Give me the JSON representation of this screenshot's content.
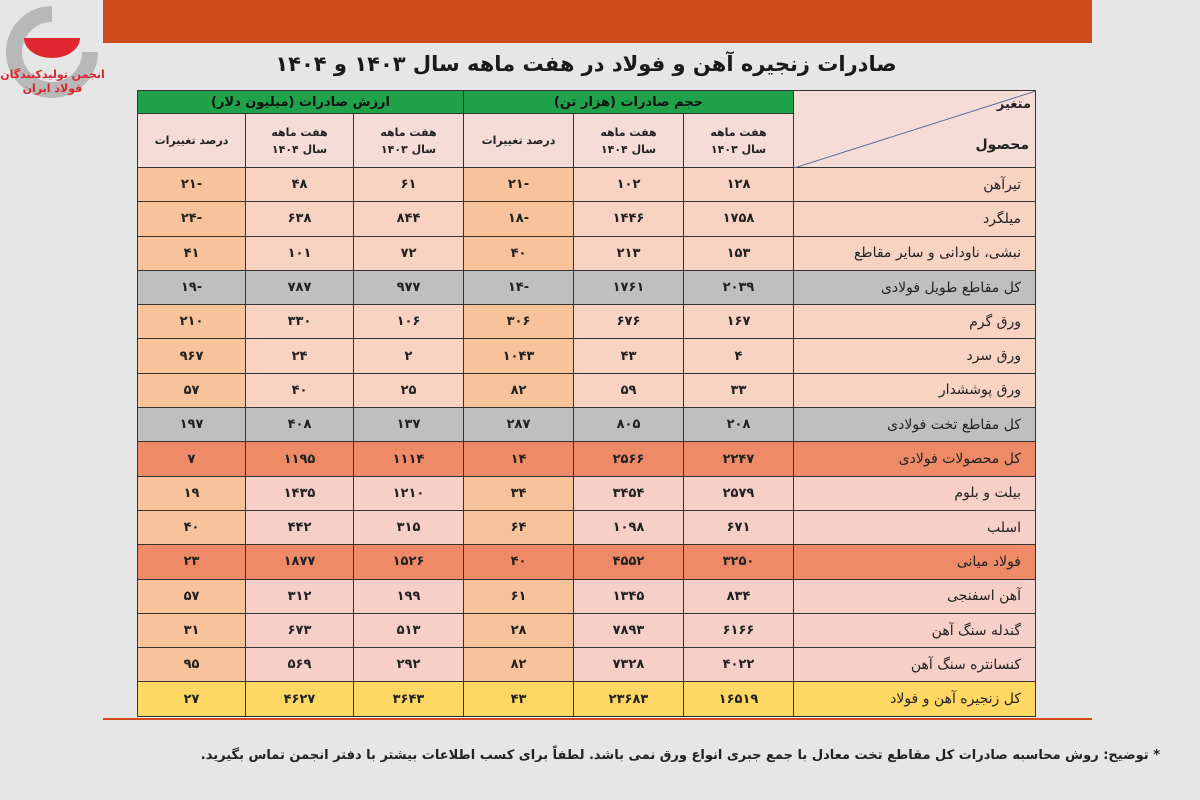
{
  "logo": {
    "line1": "انجمن تولیدکنندگان",
    "line2": "فولاد ایران"
  },
  "title": "صادرات زنجیره آهن و فولاد در هفت ماهه سال ۱۴۰۳ و ۱۴۰۴",
  "header": {
    "corner_top": "متغیر",
    "corner_bottom": "محصول",
    "volume_group": "حجم صادرات (هزار تن)",
    "value_group": "ارزش صادرات (میلیون دلار)",
    "col_1403_l1": "هفت ماهه",
    "col_1403_l2": "سال ۱۴۰۳",
    "col_1404_l1": "هفت ماهه",
    "col_1404_l2": "سال ۱۴۰۴",
    "pct": "درصد تغییرات"
  },
  "rows": [
    {
      "type": "normal",
      "name": "تیرآهن",
      "v03": "۱۲۸",
      "v04": "۱۰۲",
      "vp": "-۲۱",
      "d03": "۶۱",
      "d04": "۴۸",
      "dp": "-۲۱"
    },
    {
      "type": "normal",
      "name": "میلگرد",
      "v03": "۱۷۵۸",
      "v04": "۱۴۴۶",
      "vp": "-۱۸",
      "d03": "۸۴۴",
      "d04": "۶۳۸",
      "dp": "-۲۴"
    },
    {
      "type": "normal",
      "name": "نبشی، ناودانی و سایر مقاطع",
      "v03": "۱۵۳",
      "v04": "۲۱۳",
      "vp": "۴۰",
      "d03": "۷۲",
      "d04": "۱۰۱",
      "dp": "۴۱"
    },
    {
      "type": "gray",
      "name": "کل مقاطع طویل فولادی",
      "v03": "۲۰۳۹",
      "v04": "۱۷۶۱",
      "vp": "-۱۴",
      "d03": "۹۷۷",
      "d04": "۷۸۷",
      "dp": "-۱۹"
    },
    {
      "type": "normal",
      "name": "ورق گرم",
      "v03": "۱۶۷",
      "v04": "۶۷۶",
      "vp": "۳۰۶",
      "d03": "۱۰۶",
      "d04": "۳۳۰",
      "dp": "۲۱۰"
    },
    {
      "type": "normal",
      "name": "ورق سرد",
      "v03": "۴",
      "v04": "۴۳",
      "vp": "۱۰۴۳",
      "d03": "۲",
      "d04": "۲۴",
      "dp": "۹۶۷"
    },
    {
      "type": "normal",
      "name": "ورق پوششدار",
      "v03": "۳۳",
      "v04": "۵۹",
      "vp": "۸۲",
      "d03": "۲۵",
      "d04": "۴۰",
      "dp": "۵۷"
    },
    {
      "type": "gray",
      "name": "کل مقاطع تخت فولادی",
      "v03": "۲۰۸",
      "v04": "۸۰۵",
      "vp": "۲۸۷",
      "d03": "۱۳۷",
      "d04": "۴۰۸",
      "dp": "۱۹۷"
    },
    {
      "type": "steel",
      "name": "کل محصولات فولادی",
      "v03": "۲۲۴۷",
      "v04": "۲۵۶۶",
      "vp": "۱۴",
      "d03": "۱۱۱۴",
      "d04": "۱۱۹۵",
      "dp": "۷"
    },
    {
      "type": "pink",
      "name": "بیلت و بلوم",
      "v03": "۲۵۷۹",
      "v04": "۳۴۵۴",
      "vp": "۳۴",
      "d03": "۱۲۱۰",
      "d04": "۱۴۳۵",
      "dp": "۱۹"
    },
    {
      "type": "pink",
      "name": "اسلب",
      "v03": "۶۷۱",
      "v04": "۱۰۹۸",
      "vp": "۶۴",
      "d03": "۳۱۵",
      "d04": "۴۴۲",
      "dp": "۴۰"
    },
    {
      "type": "steel",
      "name": "فولاد میانی",
      "v03": "۳۲۵۰",
      "v04": "۴۵۵۲",
      "vp": "۴۰",
      "d03": "۱۵۲۶",
      "d04": "۱۸۷۷",
      "dp": "۲۳"
    },
    {
      "type": "pink",
      "name": "آهن اسفنجی",
      "v03": "۸۳۴",
      "v04": "۱۳۴۵",
      "vp": "۶۱",
      "d03": "۱۹۹",
      "d04": "۳۱۲",
      "dp": "۵۷"
    },
    {
      "type": "pink",
      "name": "گندله سنگ آهن",
      "v03": "۶۱۶۶",
      "v04": "۷۸۹۳",
      "vp": "۲۸",
      "d03": "۵۱۳",
      "d04": "۶۷۳",
      "dp": "۳۱"
    },
    {
      "type": "pink",
      "name": "کنسانتره سنگ آهن",
      "v03": "۴۰۲۲",
      "v04": "۷۳۲۸",
      "vp": "۸۲",
      "d03": "۲۹۲",
      "d04": "۵۶۹",
      "dp": "۹۵"
    },
    {
      "type": "total",
      "name": "کل زنجیره آهن و فولاد",
      "v03": "۱۶۵۱۹",
      "v04": "۲۳۶۸۳",
      "vp": "۴۳",
      "d03": "۳۶۴۳",
      "d04": "۴۶۲۷",
      "dp": "۲۷"
    }
  ],
  "note": "* توضیح: روش محاسبه صادرات کل مقاطع تخت معادل با جمع جبری انواع ورق نمی باشد. لطفاً برای کسب اطلاعات بیشتر با دفتر انجمن تماس بگیرید.",
  "colors": {
    "accent": "#d24a1b",
    "group_header": "#1fa24a",
    "total": "#ffd863",
    "steel": "#ee8a67",
    "gray": "#bfbfbf"
  }
}
